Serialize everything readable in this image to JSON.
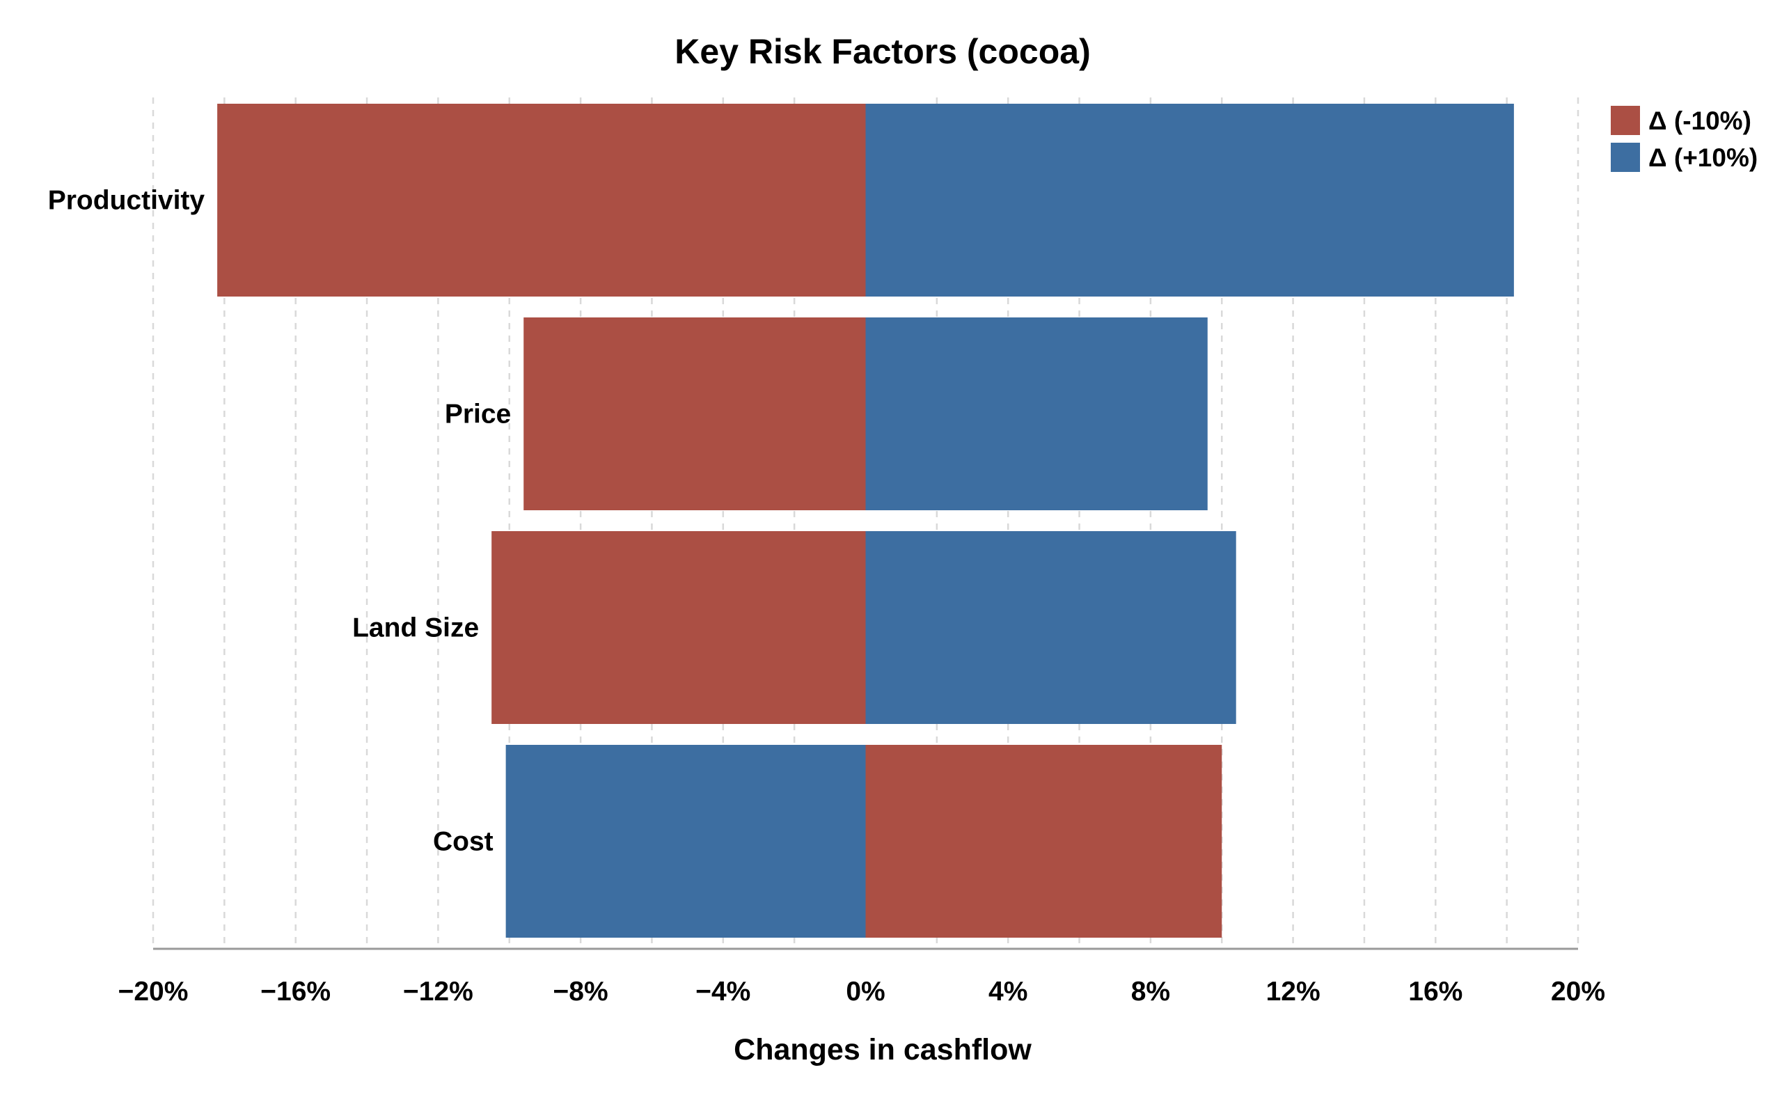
{
  "chart_data": {
    "type": "bar",
    "orientation": "horizontal",
    "title": "Key Risk Factors (cocoa)",
    "xlabel": "Changes in cashflow",
    "ylabel": "",
    "xlim": [
      -20,
      20
    ],
    "xticks": [
      -20,
      -16,
      -12,
      -8,
      -4,
      0,
      4,
      8,
      12,
      16,
      20
    ],
    "xtick_labels": [
      "−20%",
      "−16%",
      "−12%",
      "−8%",
      "−4%",
      "0%",
      "4%",
      "8%",
      "12%",
      "16%",
      "20%"
    ],
    "grid": "vertical dashed",
    "legend_position": "top-right",
    "categories": [
      "Productivity",
      "Price",
      "Land Size",
      "Cost"
    ],
    "series": [
      {
        "name": "Δ (-10%)",
        "color": "#ab4f44",
        "values": [
          -18.2,
          -9.6,
          -10.5,
          10.0
        ]
      },
      {
        "name": "Δ (+10%)",
        "color": "#3d6ea1",
        "values": [
          18.2,
          9.6,
          10.4,
          -10.1
        ]
      }
    ]
  }
}
